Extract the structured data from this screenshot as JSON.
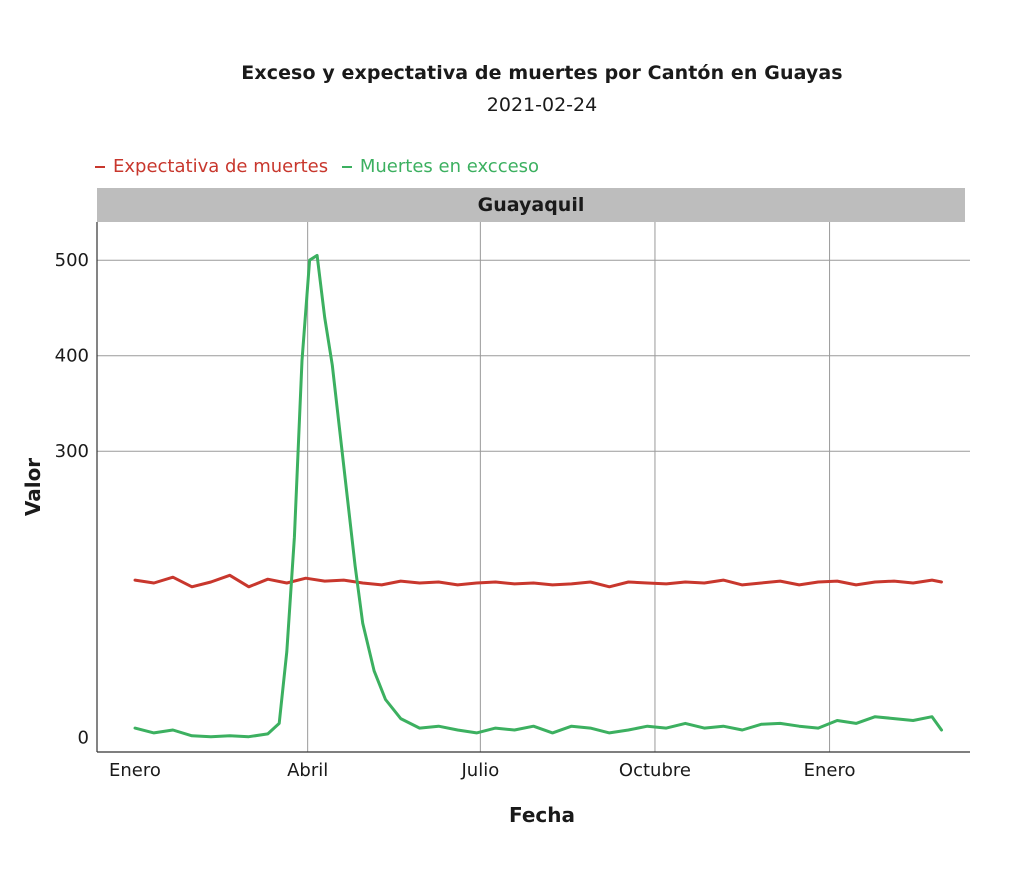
{
  "chart_data": {
    "type": "line",
    "title": "Exceso y expectativa de muertes por Cantón en Guayas",
    "subtitle": "2021-02-24",
    "facet": "Guayaquil",
    "xlabel": "Fecha",
    "ylabel": "Valor",
    "x_ticks": [
      "Enero",
      "Abril",
      "Julio",
      "Octubre",
      "Enero"
    ],
    "x_tick_days": [
      0,
      91,
      182,
      274,
      366
    ],
    "xlim": [
      -20,
      440
    ],
    "y_ticks": [
      "0",
      "300",
      "400",
      "500"
    ],
    "y_tick_values": [
      0,
      300,
      400,
      500
    ],
    "ylim": [
      -15,
      540
    ],
    "grid": true,
    "legend_position": "top-left",
    "series": [
      {
        "name": "Expectativa de muertes",
        "color": "#c8372d",
        "x": [
          0,
          10,
          20,
          30,
          40,
          50,
          60,
          70,
          80,
          90,
          100,
          110,
          120,
          130,
          140,
          150,
          160,
          170,
          180,
          190,
          200,
          210,
          220,
          230,
          240,
          250,
          260,
          270,
          280,
          290,
          300,
          310,
          320,
          330,
          340,
          350,
          360,
          370,
          380,
          390,
          400,
          410,
          420,
          425
        ],
        "y": [
          165,
          162,
          168,
          158,
          163,
          170,
          158,
          166,
          162,
          167,
          164,
          165,
          162,
          160,
          164,
          162,
          163,
          160,
          162,
          163,
          161,
          162,
          160,
          161,
          163,
          158,
          163,
          162,
          161,
          163,
          162,
          165,
          160,
          162,
          164,
          160,
          163,
          164,
          160,
          163,
          164,
          162,
          165,
          163
        ]
      },
      {
        "name": "Muertes en excceso",
        "color": "#3cb060",
        "x": [
          0,
          10,
          20,
          30,
          40,
          50,
          60,
          70,
          76,
          80,
          84,
          88,
          92,
          96,
          100,
          104,
          108,
          112,
          116,
          120,
          126,
          132,
          140,
          150,
          160,
          170,
          180,
          190,
          200,
          210,
          220,
          230,
          240,
          250,
          260,
          270,
          280,
          290,
          300,
          310,
          320,
          330,
          340,
          350,
          360,
          370,
          380,
          390,
          400,
          410,
          420,
          425
        ],
        "y": [
          10,
          5,
          8,
          2,
          1,
          2,
          1,
          4,
          15,
          90,
          210,
          395,
          500,
          505,
          440,
          390,
          320,
          250,
          180,
          120,
          70,
          40,
          20,
          10,
          12,
          8,
          5,
          10,
          8,
          12,
          5,
          12,
          10,
          5,
          8,
          12,
          10,
          15,
          10,
          12,
          8,
          14,
          15,
          12,
          10,
          18,
          15,
          22,
          20,
          18,
          22,
          8
        ]
      }
    ]
  }
}
